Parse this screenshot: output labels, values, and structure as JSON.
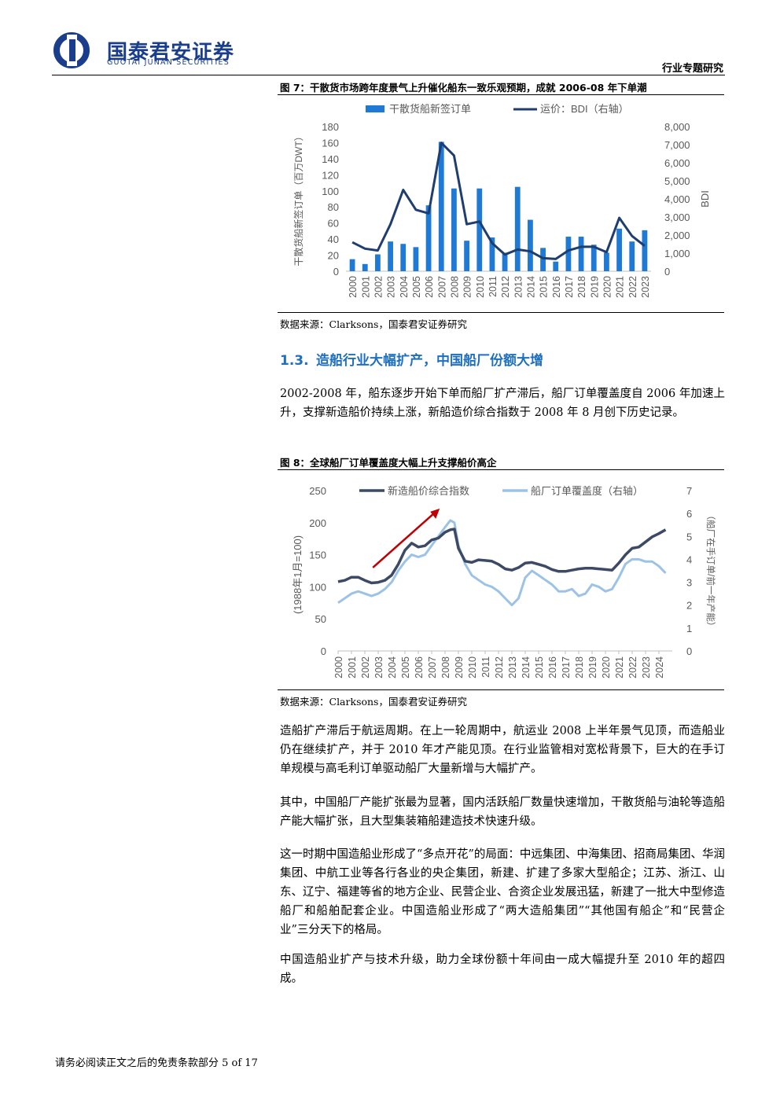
{
  "header": {
    "logo_cn": "国泰君安证券",
    "logo_en": "GUOTAI JUNAN SECURITIES",
    "report_type": "行业专题研究"
  },
  "figure7": {
    "title": "图 7：干散货市场跨年度景气上升催化船东一致乐观预期，成就 2006-08 年下单潮",
    "source": "数据来源：Clarksons，国泰君安证券研究"
  },
  "section": {
    "number": "1.3.",
    "title": "造船行业大幅扩产，中国船厂份额大增"
  },
  "paragraphs": {
    "p1": "2002-2008 年，船东逐步开始下单而船厂扩产滞后，船厂订单覆盖度自 2006 年加速上升，支撑新造船价持续上涨，新船造价综合指数于 2008 年 8 月创下历史记录。",
    "p2": "造船扩产滞后于航运周期。在上一轮周期中，航运业 2008 上半年景气见顶，而造船业仍在继续扩产，并于 2010 年才产能见顶。在行业监管相对宽松背景下，巨大的在手订单规模与高毛利订单驱动船厂大量新增与大幅扩产。",
    "p3": "其中，中国船厂产能扩张最为显著，国内活跃船厂数量快速增加，干散货船与油轮等造船产能大幅扩张，且大型集装箱船建造技术快速升级。",
    "p4": "这一时期中国造船业形成了“多点开花”的局面：中远集团、中海集团、招商局集团、华润集团、中航工业等各行各业的央企集团，新建、扩建了多家大型船企；江苏、浙江、山东、辽宁、福建等省的地方企业、民营企业、合资企业发展迅猛，新建了一批大中型修造船厂和船舶配套企业。中国造船业形成了“两大造船集团”“其他国有船企”和“民营企业”三分天下的格局。",
    "p5": "中国造船业扩产与技术升级，助力全球份额十年间由一成大幅提升至 2010 年的超四成。"
  },
  "figure8": {
    "title": "图 8：全球船厂订单覆盖度大幅上升支撑船价高企",
    "source": "数据来源：Clarksons，国泰君安证券研究"
  },
  "footer": {
    "text": "请务必阅读正文之后的免责条款部分 5 of 17"
  },
  "colors": {
    "bar": "#1f7ad6",
    "bdi": "#1f3d6e",
    "price": "#3d4a66",
    "coverage": "#9cc3e6",
    "arrow": "#c00000",
    "section": "#1f6fbf"
  },
  "chart_data": [
    {
      "type": "bar",
      "categories": [
        "2000",
        "2001",
        "2002",
        "2003",
        "2004",
        "2005",
        "2006",
        "2007",
        "2008",
        "2009",
        "2010",
        "2011",
        "2012",
        "2013",
        "2014",
        "2015",
        "2016",
        "2017",
        "2018",
        "2019",
        "2020",
        "2021",
        "2022",
        "2023"
      ],
      "ylabel": "干散货船新签订单（百万DWT）",
      "y2label": "BDI",
      "ylim": [
        0,
        180
      ],
      "y_ticks": [
        "0",
        "20",
        "40",
        "60",
        "80",
        "100",
        "120",
        "140",
        "160",
        "180"
      ],
      "y2lim": [
        0,
        8000
      ],
      "y2_ticks": [
        "0",
        "1,000",
        "2,000",
        "3,000",
        "4,000",
        "5,000",
        "6,000",
        "7,000",
        "8,000"
      ],
      "legend_position": "top",
      "series": [
        {
          "name": "干散货船新签订单",
          "kind": "bar",
          "axis": "left",
          "values": [
            15,
            9,
            21,
            37,
            34,
            30,
            82,
            161,
            103,
            38,
            103,
            42,
            23,
            105,
            64,
            29,
            12,
            43,
            43,
            33,
            23,
            53,
            37,
            51
          ]
        },
        {
          "name": "运价：BDI（右轴）",
          "kind": "line",
          "axis": "right",
          "values": [
            1600,
            1250,
            1150,
            2600,
            4500,
            3400,
            3200,
            7100,
            6400,
            2600,
            2750,
            1550,
            920,
            1200,
            1100,
            720,
            680,
            1150,
            1350,
            1350,
            1050,
            2950,
            1950,
            1400
          ]
        }
      ]
    },
    {
      "type": "line",
      "x_ticks": [
        "2000",
        "2001",
        "2002",
        "2003",
        "2004",
        "2005",
        "2006",
        "2007",
        "2008",
        "2009",
        "2010",
        "2011",
        "2012",
        "2013",
        "2014",
        "2015",
        "2016",
        "2017",
        "2018",
        "2019",
        "2020",
        "2021",
        "2022",
        "2023",
        "2024"
      ],
      "ylabel": "(1988年1月=100)",
      "y2label": "（船厂在手订单/前一年产能）",
      "ylim": [
        0,
        250
      ],
      "y_ticks": [
        "0",
        "50",
        "100",
        "150",
        "200",
        "250"
      ],
      "y2lim": [
        0,
        7
      ],
      "y2_ticks": [
        "0",
        "1",
        "2",
        "3",
        "4",
        "5",
        "6",
        "7"
      ],
      "legend_position": "top",
      "series": [
        {
          "name": "新造船价综合指数",
          "axis": "left",
          "x": [
            2000,
            2000.5,
            2001,
            2001.5,
            2002,
            2002.5,
            2003,
            2003.5,
            2004,
            2004.5,
            2005,
            2005.5,
            2006,
            2006.5,
            2007,
            2007.5,
            2008,
            2008.4,
            2008.7,
            2009,
            2009.5,
            2010,
            2010.5,
            2011,
            2011.5,
            2012,
            2012.5,
            2013,
            2013.5,
            2014,
            2014.5,
            2015,
            2015.5,
            2016,
            2016.5,
            2017,
            2017.5,
            2018,
            2018.5,
            2019,
            2019.5,
            2020,
            2020.5,
            2021,
            2021.5,
            2022,
            2022.5,
            2023,
            2023.5,
            2024,
            2024.5
          ],
          "values": [
            108,
            110,
            115,
            115,
            110,
            106,
            107,
            110,
            118,
            135,
            157,
            168,
            162,
            164,
            173,
            176,
            185,
            189,
            190,
            160,
            140,
            138,
            142,
            141,
            140,
            135,
            128,
            126,
            130,
            137,
            138,
            135,
            132,
            127,
            124,
            124,
            126,
            128,
            129,
            129,
            128,
            127,
            126,
            137,
            150,
            160,
            162,
            170,
            178,
            183,
            189
          ]
        },
        {
          "name": "船厂订单覆盖度（右轴）",
          "axis": "right",
          "x": [
            2000,
            2000.5,
            2001,
            2001.5,
            2002,
            2002.5,
            2003,
            2003.5,
            2004,
            2004.5,
            2005,
            2005.5,
            2006,
            2006.5,
            2007,
            2007.5,
            2008,
            2008.4,
            2008.7,
            2009,
            2009.5,
            2010,
            2010.5,
            2011,
            2011.5,
            2012,
            2012.5,
            2013,
            2013.5,
            2014,
            2014.5,
            2015,
            2015.5,
            2016,
            2016.5,
            2017,
            2017.5,
            2018,
            2018.5,
            2019,
            2019.5,
            2020,
            2020.5,
            2021,
            2021.5,
            2022,
            2022.5,
            2023,
            2023.5,
            2024,
            2024.5
          ],
          "values": [
            2.1,
            2.3,
            2.5,
            2.6,
            2.5,
            2.4,
            2.5,
            2.7,
            3.0,
            3.5,
            3.9,
            4.2,
            4.1,
            4.2,
            4.6,
            5.0,
            5.4,
            5.7,
            5.6,
            4.6,
            3.8,
            3.3,
            3.1,
            2.9,
            2.8,
            2.6,
            2.3,
            2.0,
            2.3,
            3.2,
            3.5,
            3.3,
            3.1,
            2.9,
            2.6,
            2.6,
            2.7,
            2.4,
            2.5,
            2.9,
            2.8,
            2.6,
            2.7,
            3.2,
            3.8,
            4.0,
            4.0,
            3.9,
            3.9,
            3.7,
            3.4
          ]
        }
      ],
      "annotation": "red-arrow"
    }
  ]
}
